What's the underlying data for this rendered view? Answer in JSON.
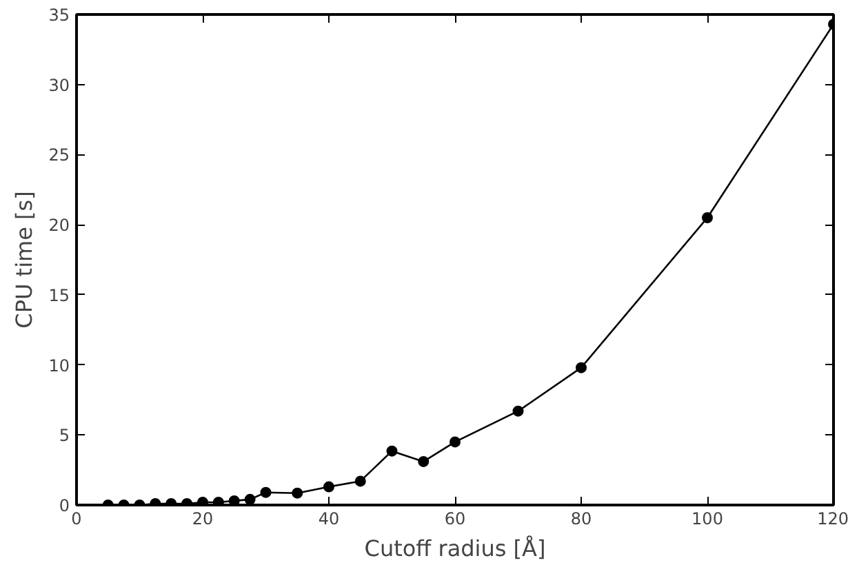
{
  "chart_data": {
    "type": "line",
    "xlabel": "Cutoff radius [Å]",
    "ylabel": "CPU time [s]",
    "x": [
      5,
      7.5,
      10,
      12.5,
      15,
      17.5,
      20,
      22.5,
      25,
      27.5,
      30,
      35,
      40,
      45,
      50,
      55,
      60,
      70,
      80,
      100,
      120
    ],
    "series": [
      {
        "color": "#000000",
        "values": [
          0.0,
          0.0,
          0.0,
          0.1,
          0.1,
          0.1,
          0.2,
          0.2,
          0.3,
          0.4,
          0.9,
          0.85,
          1.3,
          1.7,
          3.85,
          3.1,
          4.5,
          6.7,
          9.8,
          20.5,
          34.3
        ]
      }
    ],
    "xlim": [
      0,
      120
    ],
    "ylim": [
      0,
      35
    ],
    "xticks": [
      0,
      20,
      40,
      60,
      80,
      100,
      120
    ],
    "yticks": [
      0,
      5,
      10,
      15,
      20,
      25,
      30,
      35
    ],
    "marker": "circle",
    "line_style": "solid",
    "grid": false
  }
}
